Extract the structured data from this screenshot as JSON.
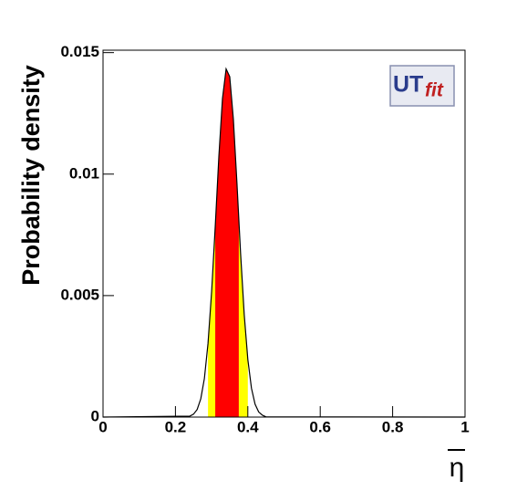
{
  "chart_data": {
    "type": "area",
    "y_label": "Probability density",
    "x_label": "η",
    "logo": [
      "UT",
      "fit"
    ],
    "x": [
      0,
      0.24,
      0.25,
      0.26,
      0.27,
      0.28,
      0.29,
      0.3,
      0.31,
      0.32,
      0.33,
      0.34,
      0.35,
      0.36,
      0.37,
      0.38,
      0.39,
      0.4,
      0.41,
      0.42,
      0.43,
      0.44,
      0.45,
      1
    ],
    "values": [
      0,
      4e-05,
      0.00012,
      0.00031,
      0.00075,
      0.00159,
      0.00303,
      0.00516,
      0.00786,
      0.01073,
      0.01311,
      0.01433,
      0.01401,
      0.01226,
      0.00961,
      0.00673,
      0.00422,
      0.00237,
      0.00119,
      0.00053,
      0.00021,
      8e-05,
      1e-05,
      0
    ],
    "line_color": "#000000",
    "regions": [
      {
        "color": "#ffff00",
        "range": [
          0.29,
          0.4
        ]
      },
      {
        "color": "#ff0000",
        "range": [
          0.31,
          0.375
        ]
      }
    ],
    "xlim": [
      0,
      1
    ],
    "ylim": [
      0,
      0.0151
    ],
    "xticks": [
      0,
      0.2,
      0.4,
      0.6,
      0.8,
      1
    ],
    "yticks": [
      0,
      0.005,
      0.01,
      0.015
    ]
  }
}
